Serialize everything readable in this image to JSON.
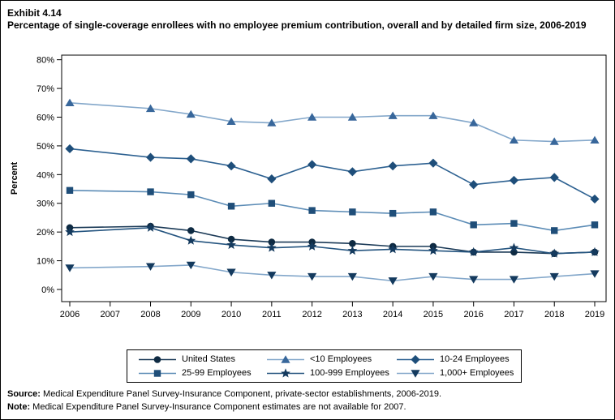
{
  "page": {
    "exhibit_label": "Exhibit 4.14",
    "title": "Percentage of single-coverage enrollees with no employee premium contribution, overall and by detailed firm size, 2006-2019",
    "source_label": "Source:",
    "source_text": "Medical Expenditure Panel Survey-Insurance Component, private-sector establishments, 2006-2019.",
    "note_label": "Note:",
    "note_text": "Medical Expenditure Panel Survey-Insurance Component estimates are not available for 2007."
  },
  "chart_data": {
    "type": "line",
    "title": "Exhibit 4.14",
    "subtitle": "Percentage of single-coverage enrollees with no employee premium contribution, overall and by detailed firm size, 2006-2019",
    "xlabel": "",
    "ylabel": "Percent",
    "ylim": [
      0,
      80
    ],
    "ytick_step": 10,
    "ytick_suffix": "%",
    "grid": false,
    "legend_position": "bottom",
    "missing_years": [
      2007
    ],
    "x": [
      2006,
      2007,
      2008,
      2009,
      2010,
      2011,
      2012,
      2013,
      2014,
      2015,
      2016,
      2017,
      2018,
      2019
    ],
    "series": [
      {
        "name": "United States",
        "slug": "united-states",
        "marker": "circle",
        "line_color": "#1b3a57",
        "marker_color": "#0e2a42",
        "values": [
          21.5,
          null,
          22,
          20.5,
          17.5,
          16.5,
          16.5,
          16,
          15,
          15,
          13,
          13,
          12.5,
          13
        ]
      },
      {
        "name": "<10 Employees",
        "slug": "lt-10-employees",
        "marker": "triangle-up",
        "line_color": "#83a7ca",
        "marker_color": "#38679b",
        "values": [
          65,
          null,
          63,
          61,
          58.5,
          58,
          60,
          60,
          60.5,
          60.5,
          58,
          52,
          51.5,
          52
        ]
      },
      {
        "name": "10-24 Employees",
        "slug": "10-24-employees",
        "marker": "diamond",
        "line_color": "#2d6191",
        "marker_color": "#1e4e7a",
        "values": [
          49,
          null,
          46,
          45.5,
          43,
          38.5,
          43.5,
          41,
          43,
          44,
          36.5,
          38,
          39,
          31.5
        ]
      },
      {
        "name": "25-99 Employees",
        "slug": "25-99-employees",
        "marker": "square",
        "line_color": "#5c8cb6",
        "marker_color": "#1f4e79",
        "values": [
          34.5,
          null,
          34,
          33,
          29,
          30,
          27.5,
          27,
          26.5,
          27,
          22.5,
          23,
          20.5,
          22.5
        ]
      },
      {
        "name": "100-999 Employees",
        "slug": "100-999-employees",
        "marker": "star",
        "line_color": "#24547f",
        "marker_color": "#143a5e",
        "values": [
          20,
          null,
          21.5,
          17,
          15.5,
          14.5,
          15,
          13.5,
          14,
          13.5,
          13,
          14.5,
          12.5,
          13
        ]
      },
      {
        "name": "1,000+ Employees",
        "slug": "1000-plus-employees",
        "marker": "triangle-down",
        "line_color": "#83a7ca",
        "marker_color": "#143a5e",
        "values": [
          7.5,
          null,
          8,
          8.5,
          6,
          5,
          4.5,
          4.5,
          3,
          4.5,
          3.5,
          3.5,
          4.5,
          5.5
        ]
      }
    ]
  }
}
